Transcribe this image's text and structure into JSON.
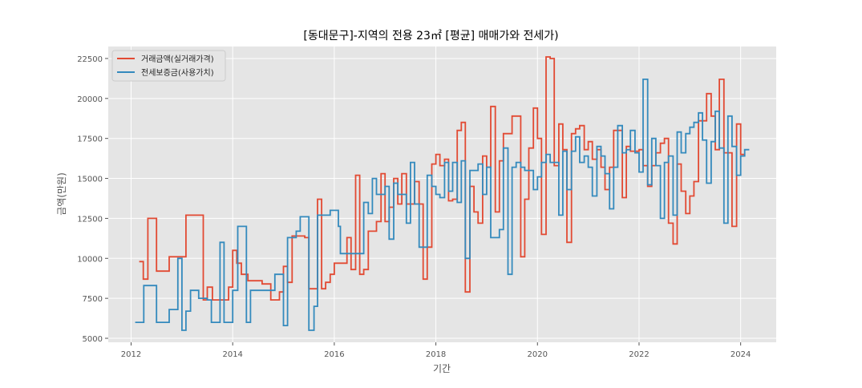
{
  "chart_data": {
    "type": "line",
    "title": "[동대문구]-지역의 전용 23㎡ [평균] 매매가와 전세가)",
    "xlabel": "기간",
    "ylabel": "금액(만원)",
    "xlim": [
      2011.55,
      2024.7
    ],
    "ylim": [
      4750,
      23250
    ],
    "x_ticks": [
      2012,
      2014,
      2016,
      2018,
      2020,
      2022,
      2024
    ],
    "x_tick_labels": [
      "2012",
      "2014",
      "2016",
      "2018",
      "2020",
      "2022",
      "2024"
    ],
    "y_ticks": [
      5000,
      7500,
      10000,
      12500,
      15000,
      17500,
      20000,
      22500
    ],
    "y_tick_labels": [
      "5000",
      "7500",
      "10000",
      "12500",
      "15000",
      "17500",
      "20000",
      "22500"
    ],
    "grid": true,
    "legend_position": "top-left",
    "step": "post",
    "colors": {
      "background": "#e5e5e5",
      "grid": "#ffffff",
      "sale": "#e24a33",
      "jeonse": "#348abd"
    },
    "series": [
      {
        "name": "거래금액(실거래가격)",
        "color": "#e24a33",
        "points": [
          [
            2012.16,
            9800
          ],
          [
            2012.24,
            8700
          ],
          [
            2012.33,
            12500
          ],
          [
            2012.5,
            9200
          ],
          [
            2012.75,
            10100
          ],
          [
            2013.08,
            12700
          ],
          [
            2013.42,
            7400
          ],
          [
            2013.5,
            8200
          ],
          [
            2013.6,
            7400
          ],
          [
            2013.92,
            8200
          ],
          [
            2014.0,
            10500
          ],
          [
            2014.08,
            9700
          ],
          [
            2014.17,
            9000
          ],
          [
            2014.3,
            8600
          ],
          [
            2014.42,
            8600
          ],
          [
            2014.58,
            8400
          ],
          [
            2014.75,
            7400
          ],
          [
            2014.92,
            7900
          ],
          [
            2015.0,
            9500
          ],
          [
            2015.08,
            8500
          ],
          [
            2015.17,
            11400
          ],
          [
            2015.33,
            11400
          ],
          [
            2015.42,
            11300
          ],
          [
            2015.5,
            8100
          ],
          [
            2015.67,
            13700
          ],
          [
            2015.75,
            8100
          ],
          [
            2015.83,
            8500
          ],
          [
            2015.92,
            9000
          ],
          [
            2016.0,
            9700
          ],
          [
            2016.25,
            11300
          ],
          [
            2016.33,
            9300
          ],
          [
            2016.42,
            15200
          ],
          [
            2016.5,
            9000
          ],
          [
            2016.58,
            9300
          ],
          [
            2016.67,
            11700
          ],
          [
            2016.83,
            12300
          ],
          [
            2016.92,
            15300
          ],
          [
            2017.0,
            12300
          ],
          [
            2017.08,
            13200
          ],
          [
            2017.17,
            15000
          ],
          [
            2017.25,
            13400
          ],
          [
            2017.33,
            15300
          ],
          [
            2017.42,
            13400
          ],
          [
            2017.58,
            14800
          ],
          [
            2017.67,
            13400
          ],
          [
            2017.75,
            8700
          ],
          [
            2017.83,
            10700
          ],
          [
            2017.92,
            15900
          ],
          [
            2018.0,
            16500
          ],
          [
            2018.08,
            15800
          ],
          [
            2018.17,
            16200
          ],
          [
            2018.25,
            13600
          ],
          [
            2018.33,
            13700
          ],
          [
            2018.42,
            18000
          ],
          [
            2018.5,
            18500
          ],
          [
            2018.58,
            7900
          ],
          [
            2018.67,
            14500
          ],
          [
            2018.75,
            12900
          ],
          [
            2018.83,
            12200
          ],
          [
            2018.92,
            16400
          ],
          [
            2019.0,
            15700
          ],
          [
            2019.08,
            19500
          ],
          [
            2019.17,
            12900
          ],
          [
            2019.25,
            16100
          ],
          [
            2019.33,
            17800
          ],
          [
            2019.5,
            18900
          ],
          [
            2019.67,
            10100
          ],
          [
            2019.75,
            13700
          ],
          [
            2019.83,
            16900
          ],
          [
            2019.92,
            19400
          ],
          [
            2020.0,
            17500
          ],
          [
            2020.08,
            11500
          ],
          [
            2020.17,
            22600
          ],
          [
            2020.25,
            22500
          ],
          [
            2020.33,
            15800
          ],
          [
            2020.42,
            18400
          ],
          [
            2020.5,
            16800
          ],
          [
            2020.58,
            11000
          ],
          [
            2020.67,
            17800
          ],
          [
            2020.75,
            18100
          ],
          [
            2020.83,
            18300
          ],
          [
            2020.92,
            16800
          ],
          [
            2021.0,
            17300
          ],
          [
            2021.08,
            16200
          ],
          [
            2021.17,
            16800
          ],
          [
            2021.25,
            15700
          ],
          [
            2021.33,
            14300
          ],
          [
            2021.42,
            15700
          ],
          [
            2021.5,
            18000
          ],
          [
            2021.67,
            13800
          ],
          [
            2021.75,
            17000
          ],
          [
            2021.83,
            16700
          ],
          [
            2022.0,
            16800
          ],
          [
            2022.08,
            15800
          ],
          [
            2022.17,
            14500
          ],
          [
            2022.25,
            15800
          ],
          [
            2022.33,
            16600
          ],
          [
            2022.42,
            17200
          ],
          [
            2022.5,
            17500
          ],
          [
            2022.58,
            12200
          ],
          [
            2022.67,
            10900
          ],
          [
            2022.75,
            15900
          ],
          [
            2022.83,
            14200
          ],
          [
            2022.92,
            12800
          ],
          [
            2023.0,
            13900
          ],
          [
            2023.08,
            14800
          ],
          [
            2023.17,
            18600
          ],
          [
            2023.33,
            20300
          ],
          [
            2023.42,
            18900
          ],
          [
            2023.5,
            16800
          ],
          [
            2023.58,
            21200
          ],
          [
            2023.67,
            16600
          ],
          [
            2023.83,
            12000
          ],
          [
            2023.92,
            18400
          ],
          [
            2024.0,
            16500
          ],
          [
            2024.08,
            16500
          ]
        ]
      },
      {
        "name": "전세보증금(사용가치)",
        "color": "#348abd",
        "points": [
          [
            2012.08,
            6000
          ],
          [
            2012.25,
            8300
          ],
          [
            2012.5,
            6000
          ],
          [
            2012.75,
            6800
          ],
          [
            2012.92,
            10000
          ],
          [
            2013.0,
            5500
          ],
          [
            2013.08,
            6700
          ],
          [
            2013.17,
            8000
          ],
          [
            2013.33,
            7500
          ],
          [
            2013.5,
            7400
          ],
          [
            2013.58,
            6000
          ],
          [
            2013.75,
            11000
          ],
          [
            2013.83,
            6000
          ],
          [
            2014.0,
            8000
          ],
          [
            2014.1,
            12000
          ],
          [
            2014.27,
            6000
          ],
          [
            2014.35,
            8000
          ],
          [
            2014.5,
            8000
          ],
          [
            2014.75,
            8000
          ],
          [
            2014.83,
            9000
          ],
          [
            2015.0,
            5800
          ],
          [
            2015.08,
            11300
          ],
          [
            2015.25,
            11700
          ],
          [
            2015.33,
            12600
          ],
          [
            2015.5,
            5500
          ],
          [
            2015.6,
            7000
          ],
          [
            2015.67,
            12700
          ],
          [
            2015.92,
            13000
          ],
          [
            2016.08,
            12000
          ],
          [
            2016.12,
            10300
          ],
          [
            2016.5,
            10300
          ],
          [
            2016.58,
            13500
          ],
          [
            2016.67,
            12800
          ],
          [
            2016.75,
            15000
          ],
          [
            2016.83,
            14000
          ],
          [
            2017.0,
            14500
          ],
          [
            2017.08,
            11200
          ],
          [
            2017.17,
            14700
          ],
          [
            2017.25,
            14000
          ],
          [
            2017.42,
            12200
          ],
          [
            2017.5,
            16000
          ],
          [
            2017.58,
            13400
          ],
          [
            2017.67,
            10700
          ],
          [
            2017.83,
            15200
          ],
          [
            2017.92,
            14500
          ],
          [
            2018.0,
            14000
          ],
          [
            2018.08,
            13800
          ],
          [
            2018.17,
            16000
          ],
          [
            2018.25,
            14200
          ],
          [
            2018.33,
            16000
          ],
          [
            2018.42,
            13500
          ],
          [
            2018.5,
            16100
          ],
          [
            2018.58,
            10000
          ],
          [
            2018.67,
            15500
          ],
          [
            2018.83,
            15900
          ],
          [
            2018.92,
            14000
          ],
          [
            2019.0,
            15700
          ],
          [
            2019.08,
            11300
          ],
          [
            2019.25,
            11800
          ],
          [
            2019.33,
            16900
          ],
          [
            2019.42,
            9000
          ],
          [
            2019.5,
            15700
          ],
          [
            2019.58,
            16000
          ],
          [
            2019.67,
            15700
          ],
          [
            2019.75,
            15500
          ],
          [
            2019.92,
            14300
          ],
          [
            2020.0,
            15100
          ],
          [
            2020.08,
            16000
          ],
          [
            2020.17,
            16500
          ],
          [
            2020.25,
            16000
          ],
          [
            2020.42,
            12700
          ],
          [
            2020.5,
            16700
          ],
          [
            2020.58,
            14300
          ],
          [
            2020.67,
            16700
          ],
          [
            2020.75,
            17600
          ],
          [
            2020.83,
            16000
          ],
          [
            2020.92,
            16400
          ],
          [
            2021.0,
            15700
          ],
          [
            2021.08,
            13900
          ],
          [
            2021.17,
            17000
          ],
          [
            2021.25,
            16400
          ],
          [
            2021.33,
            15300
          ],
          [
            2021.42,
            13100
          ],
          [
            2021.5,
            15700
          ],
          [
            2021.58,
            18300
          ],
          [
            2021.67,
            16600
          ],
          [
            2021.75,
            16800
          ],
          [
            2021.83,
            18000
          ],
          [
            2021.92,
            16600
          ],
          [
            2022.0,
            15400
          ],
          [
            2022.08,
            21200
          ],
          [
            2022.17,
            14600
          ],
          [
            2022.25,
            17500
          ],
          [
            2022.33,
            15800
          ],
          [
            2022.42,
            12500
          ],
          [
            2022.5,
            16000
          ],
          [
            2022.58,
            16400
          ],
          [
            2022.67,
            12700
          ],
          [
            2022.75,
            17900
          ],
          [
            2022.83,
            16600
          ],
          [
            2022.92,
            17800
          ],
          [
            2023.0,
            18200
          ],
          [
            2023.08,
            18500
          ],
          [
            2023.17,
            19100
          ],
          [
            2023.25,
            17400
          ],
          [
            2023.33,
            14700
          ],
          [
            2023.42,
            17300
          ],
          [
            2023.5,
            19200
          ],
          [
            2023.58,
            16900
          ],
          [
            2023.67,
            12200
          ],
          [
            2023.75,
            18900
          ],
          [
            2023.83,
            17000
          ],
          [
            2023.92,
            15200
          ],
          [
            2024.0,
            16400
          ],
          [
            2024.08,
            16800
          ],
          [
            2024.17,
            16800
          ]
        ]
      }
    ]
  }
}
